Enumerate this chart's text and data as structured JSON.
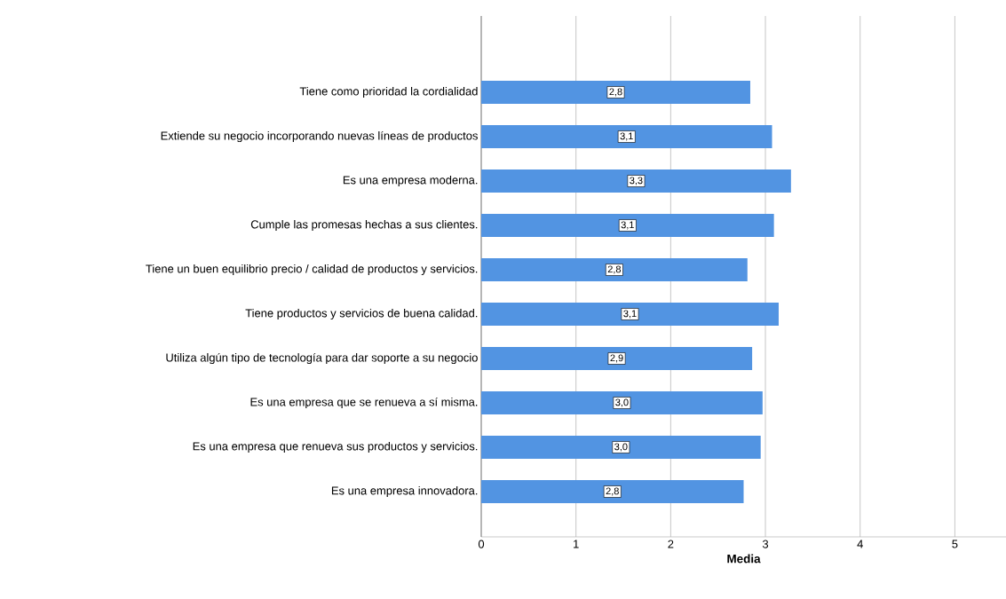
{
  "chart_data": {
    "type": "bar",
    "orientation": "horizontal",
    "xlabel": "Media",
    "categories": [
      "Tiene como prioridad la cordialidad",
      "Extiende su negocio incorporando nuevas líneas de productos",
      "Es una empresa moderna.",
      "Cumple las promesas hechas a sus clientes.",
      "Tiene un buen equilibrio precio / calidad de productos y servicios.",
      "Tiene productos y servicios de buena calidad.",
      "Utiliza algún tipo de tecnología para dar soporte a su negocio",
      "Es una empresa que se renueva a sí misma.",
      "Es una empresa que renueva sus productos y servicios.",
      "Es una empresa innovadora."
    ],
    "values": [
      2.84,
      3.07,
      3.27,
      3.09,
      2.81,
      3.14,
      2.86,
      2.97,
      2.95,
      2.77
    ],
    "value_labels": [
      "2,8",
      "3,1",
      "3,3",
      "3,1",
      "2,8",
      "3,1",
      "2,9",
      "3,0",
      "3,0",
      "2,8"
    ],
    "color": "#5294e2",
    "xlim": [
      0,
      5.54
    ],
    "xticks": [
      0,
      1,
      2,
      3,
      4,
      5
    ],
    "grid": "x"
  }
}
